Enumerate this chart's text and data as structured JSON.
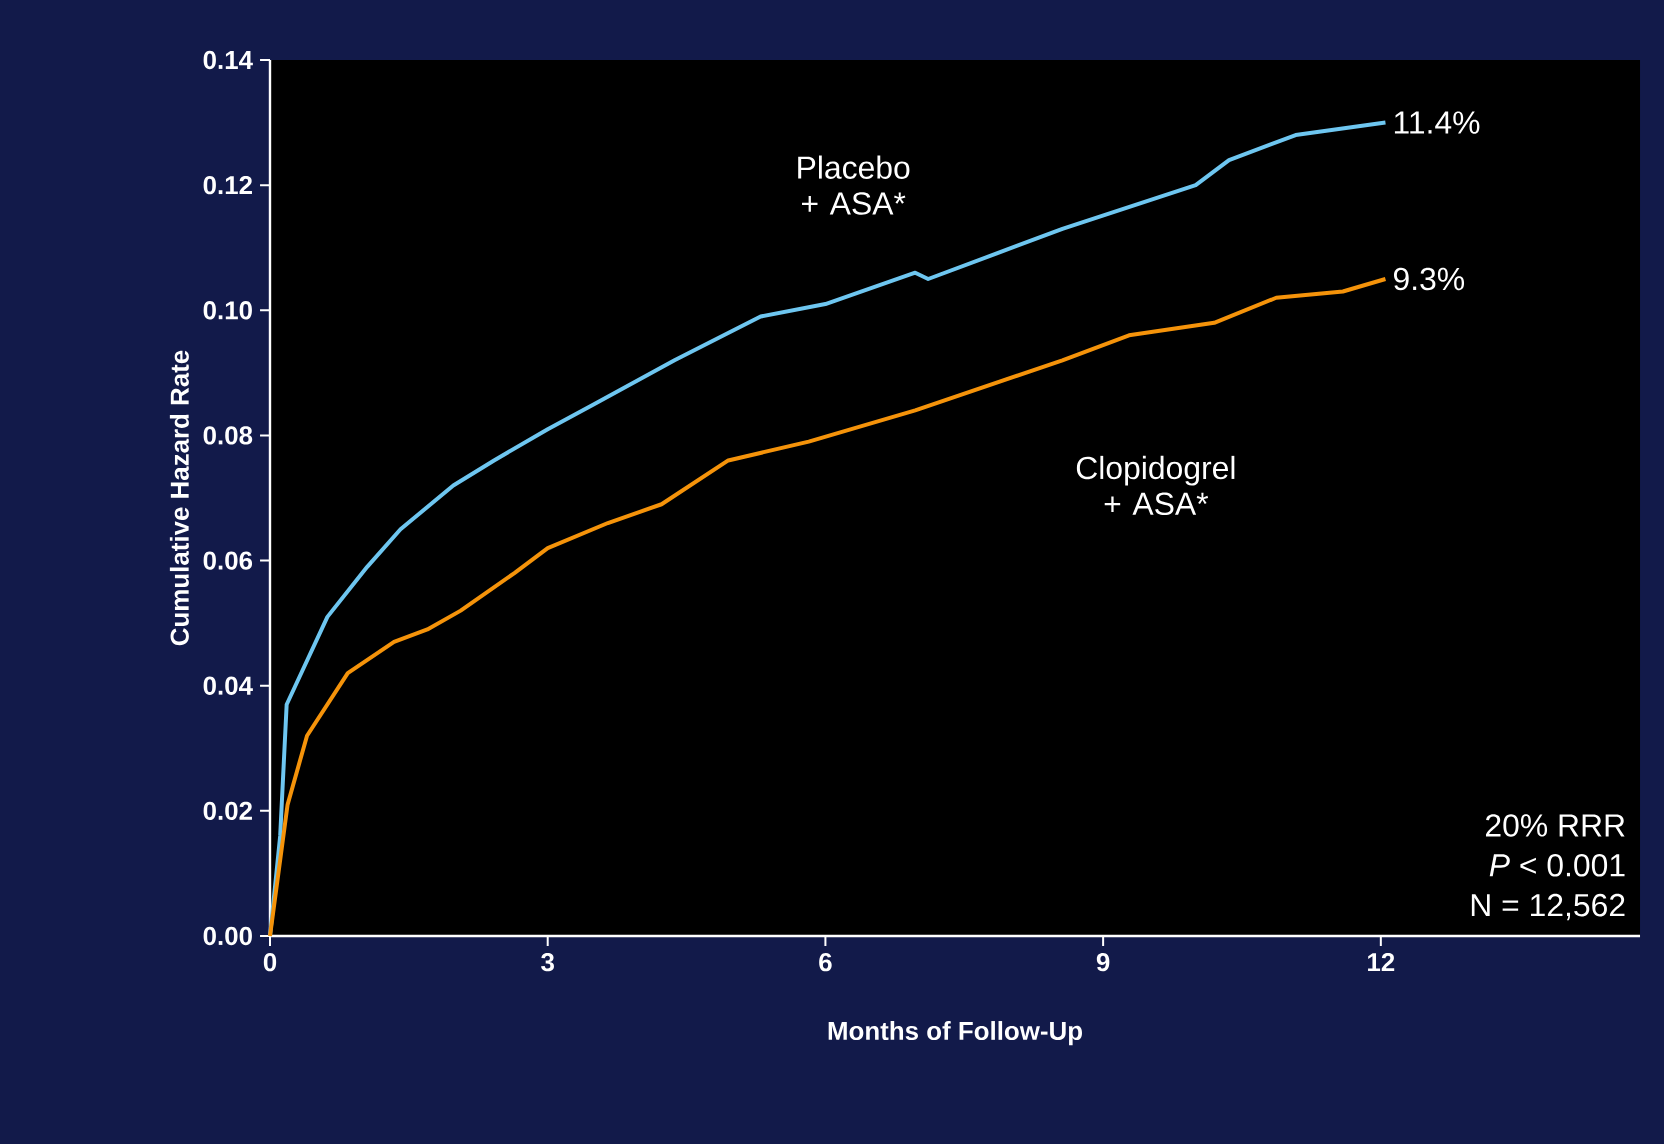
{
  "chart_data": {
    "type": "line",
    "xlabel": "Months of Follow-Up",
    "ylabel": "Cumulative Hazard Rate",
    "xlim": [
      0,
      14.8
    ],
    "ylim": [
      0,
      0.14
    ],
    "xticks": [
      0,
      3,
      6,
      9,
      12
    ],
    "yticks": [
      {
        "value": 0,
        "label": "0.00"
      },
      {
        "value": 0.02,
        "label": "0.02"
      },
      {
        "value": 0.04,
        "label": "0.04"
      },
      {
        "value": 0.06,
        "label": "0.06"
      },
      {
        "value": 0.08,
        "label": "0.08"
      },
      {
        "value": 0.1,
        "label": "0.10"
      },
      {
        "value": 0.12,
        "label": "0.12"
      },
      {
        "value": 0.14,
        "label": "0.14"
      }
    ],
    "series": [
      {
        "name": "Placebo + ASA*",
        "color": "#6ec6f0",
        "x": [
          0,
          0.11,
          0.18,
          0.62,
          1.05,
          1.41,
          1.98,
          2.42,
          3.0,
          3.5,
          4.37,
          5.3,
          6.0,
          6.97,
          7.11,
          8.56,
          10.0,
          10.36,
          11.08,
          12.05
        ],
        "values": [
          0,
          0.016,
          0.037,
          0.051,
          0.059,
          0.065,
          0.072,
          0.076,
          0.081,
          0.085,
          0.092,
          0.099,
          0.101,
          0.106,
          0.105,
          0.113,
          0.12,
          0.124,
          0.128,
          0.13
        ]
      },
      {
        "name": "Clopidogrel + ASA*",
        "color": "#f5930a",
        "x": [
          0,
          0.19,
          0.4,
          0.84,
          1.34,
          1.7,
          2.06,
          2.64,
          3.0,
          3.65,
          4.23,
          4.95,
          5.82,
          6.97,
          8.56,
          9.28,
          10.2,
          10.87,
          11.59,
          12.05
        ],
        "values": [
          0,
          0.021,
          0.032,
          0.042,
          0.047,
          0.049,
          0.052,
          0.058,
          0.062,
          0.066,
          0.069,
          0.076,
          0.079,
          0.084,
          0.092,
          0.096,
          0.098,
          0.102,
          0.103,
          0.105
        ]
      }
    ],
    "annotations": [
      {
        "text": "11.4%",
        "x": 12.05,
        "y": 0.13
      },
      {
        "text": "9.3%",
        "x": 12.05,
        "y": 0.105
      },
      "20% RRR",
      "*P* < 0.001",
      "N = 12,562"
    ]
  }
}
